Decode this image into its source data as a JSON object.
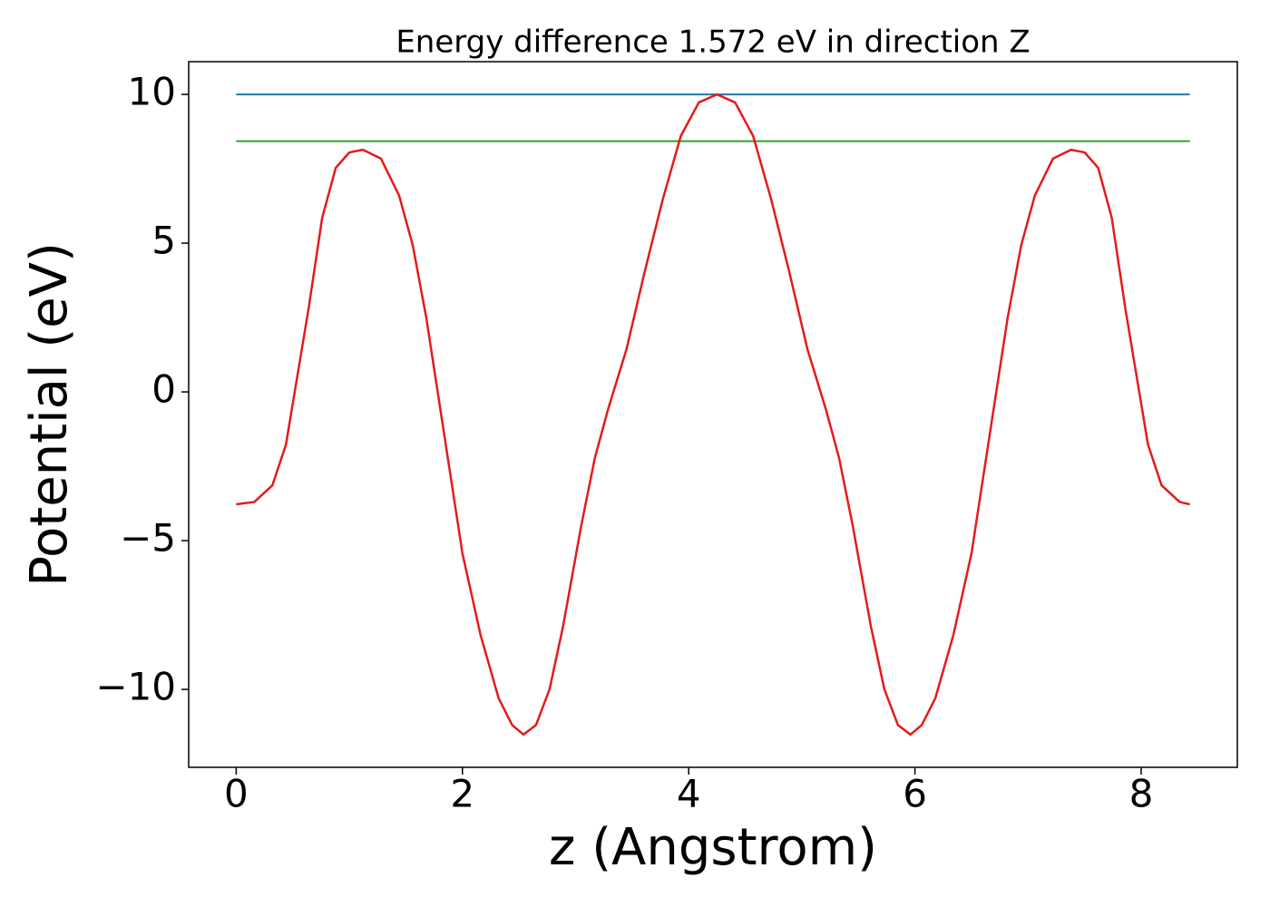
{
  "chart_data": {
    "type": "line",
    "title": "Energy difference 1.572 eV in direction Z",
    "xlabel": "z (Angstrom)",
    "ylabel": "Potential (eV)",
    "xlim": [
      -0.42,
      8.85
    ],
    "ylim": [
      -12.62,
      11.1
    ],
    "xticks": [
      0,
      2,
      4,
      6,
      8
    ],
    "yticks": [
      {
        "value": -10,
        "label": "−10"
      },
      {
        "value": -5,
        "label": "−5"
      },
      0,
      5,
      10
    ],
    "series": [
      {
        "color": "#1f77b4",
        "x": [
          0,
          8.43
        ],
        "values": [
          10.0,
          10.0
        ]
      },
      {
        "color": "#2ca02c",
        "x": [
          0,
          8.43
        ],
        "values": [
          8.43,
          8.43
        ]
      },
      {
        "color": "#e41a1c",
        "x": [
          0,
          0.16,
          0.32,
          0.44,
          0.52,
          0.64,
          0.76,
          0.88,
          1.0,
          1.12,
          1.28,
          1.44,
          1.56,
          1.68,
          1.84,
          2.0,
          2.16,
          2.32,
          2.44,
          2.54,
          2.65,
          2.77,
          2.89,
          3.05,
          3.17,
          3.29,
          3.45,
          3.61,
          3.77,
          3.93,
          4.09,
          4.25,
          4.41,
          4.57,
          4.73,
          4.89,
          5.05,
          5.21,
          5.33,
          5.45,
          5.61,
          5.73,
          5.85,
          5.96,
          6.06,
          6.18,
          6.34,
          6.5,
          6.66,
          6.82,
          6.94,
          7.06,
          7.22,
          7.38,
          7.5,
          7.62,
          7.74,
          7.86,
          7.98,
          8.06,
          8.18,
          8.34,
          8.43
        ],
        "values": [
          -3.78,
          -3.7,
          -3.14,
          -1.77,
          0.06,
          2.8,
          5.85,
          7.53,
          8.05,
          8.14,
          7.84,
          6.6,
          4.94,
          2.5,
          -1.46,
          -5.43,
          -8.17,
          -10.3,
          -11.2,
          -11.52,
          -11.2,
          -10.0,
          -7.87,
          -4.5,
          -2.23,
          -0.55,
          1.43,
          4.02,
          6.46,
          8.6,
          9.73,
          10.0,
          9.73,
          8.6,
          6.46,
          4.02,
          1.43,
          -0.55,
          -2.23,
          -4.5,
          -7.87,
          -10.0,
          -11.2,
          -11.52,
          -11.2,
          -10.3,
          -8.17,
          -5.43,
          -1.46,
          2.5,
          4.94,
          6.6,
          7.84,
          8.14,
          8.05,
          7.53,
          5.85,
          2.8,
          0.06,
          -1.77,
          -3.14,
          -3.7,
          -3.78
        ]
      }
    ]
  }
}
